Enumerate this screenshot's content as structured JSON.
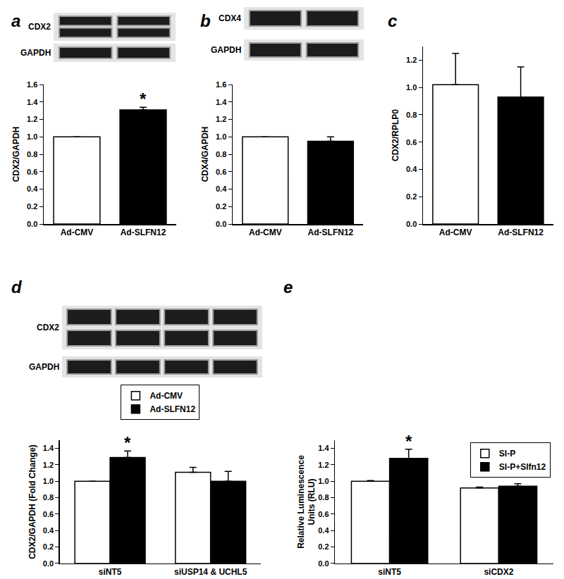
{
  "chart_data": [
    {
      "type": "bar",
      "title": "a",
      "blot_labels": [
        "CDX2",
        "GAPDH"
      ],
      "categories": [
        "Ad-CMV",
        "Ad-SLFN12"
      ],
      "values": [
        1.0,
        1.31
      ],
      "errors": [
        0,
        0.03
      ],
      "colors": [
        "#ffffff",
        "#000000"
      ],
      "y_label": "CDX2/GAPDH",
      "ylim": [
        0,
        1.6
      ],
      "yticks": [
        {
          "value": 0,
          "label": "0.0"
        },
        0.2,
        0.4,
        0.6,
        0.8,
        {
          "value": 1,
          "label": "1.0"
        },
        1.2,
        1.4,
        1.6
      ],
      "grid": false,
      "annotations": [
        {
          "text": "*",
          "category": "Ad-SLFN12"
        }
      ]
    },
    {
      "type": "bar",
      "title": "b",
      "blot_labels": [
        "CDX4",
        "GAPDH"
      ],
      "categories": [
        "Ad-CMV",
        "Ad-SLFN12"
      ],
      "values": [
        1.0,
        0.95
      ],
      "errors": [
        0,
        0.05
      ],
      "colors": [
        "#ffffff",
        "#000000"
      ],
      "y_label": "CDX4/GAPDH",
      "ylim": [
        0,
        1.6
      ],
      "yticks": [
        {
          "value": 0,
          "label": "0.0"
        },
        0.2,
        0.4,
        0.6,
        0.8,
        {
          "value": 1,
          "label": "1.0"
        },
        1.2,
        1.4,
        1.6
      ],
      "grid": false
    },
    {
      "type": "bar",
      "title": "c",
      "categories": [
        "Ad-CMV",
        "Ad-SLFN12"
      ],
      "values": [
        1.02,
        0.93
      ],
      "errors": [
        0.23,
        0.22
      ],
      "colors": [
        "#ffffff",
        "#000000"
      ],
      "y_label": "CDX2/RPLP0",
      "ylim": [
        0,
        1.3
      ],
      "yticks": [
        {
          "value": 0,
          "label": "0.0"
        },
        0.2,
        0.4,
        0.6,
        0.8,
        {
          "value": 1,
          "label": "1.0"
        },
        1.2
      ],
      "grid": false
    },
    {
      "type": "bar",
      "title": "d",
      "blot_labels": [
        "CDX2",
        "GAPDH"
      ],
      "categories": [
        "siNT5",
        "siUSP14 & UCHL5"
      ],
      "series": [
        {
          "name": "Ad-CMV",
          "color": "#ffffff",
          "values": [
            1.0,
            1.11
          ],
          "errors": [
            0,
            0.06
          ]
        },
        {
          "name": "Ad-SLFN12",
          "color": "#000000",
          "values": [
            1.29,
            1.0
          ],
          "errors": [
            0.08,
            0.12
          ]
        }
      ],
      "y_label": "CDX2/GAPDH (Fold Change)",
      "legend": "top",
      "ylim": [
        0,
        1.5
      ],
      "yticks": [
        {
          "value": 0,
          "label": "0.0"
        },
        0.2,
        0.4,
        0.6,
        0.8,
        {
          "value": 1,
          "label": "1.0"
        },
        1.2,
        1.4
      ],
      "grid": false,
      "annotations": [
        {
          "text": "*",
          "category": "siNT5",
          "series": "Ad-SLFN12"
        }
      ]
    },
    {
      "type": "bar",
      "title": "e",
      "categories": [
        "siNT5",
        "siCDX2"
      ],
      "series": [
        {
          "name": "SI-P",
          "color": "#ffffff",
          "values": [
            1.0,
            0.92
          ],
          "errors": [
            0.01,
            0.01
          ]
        },
        {
          "name": "SI-P+Slfn12",
          "color": "#000000",
          "values": [
            1.28,
            0.94
          ],
          "errors": [
            0.11,
            0.03
          ]
        }
      ],
      "y_label": [
        "Relative Luminescence",
        "Units (RLU)"
      ],
      "legend": "upper right",
      "ylim": [
        0,
        1.5
      ],
      "yticks": [
        {
          "value": 0,
          "label": "0.0"
        },
        0.2,
        0.4,
        0.6,
        0.8,
        {
          "value": 1,
          "label": "1.0"
        },
        1.2,
        1.4
      ],
      "grid": false,
      "annotations": [
        {
          "text": "*",
          "category": "siNT5",
          "series": "SI-P+Slfn12"
        }
      ]
    }
  ]
}
